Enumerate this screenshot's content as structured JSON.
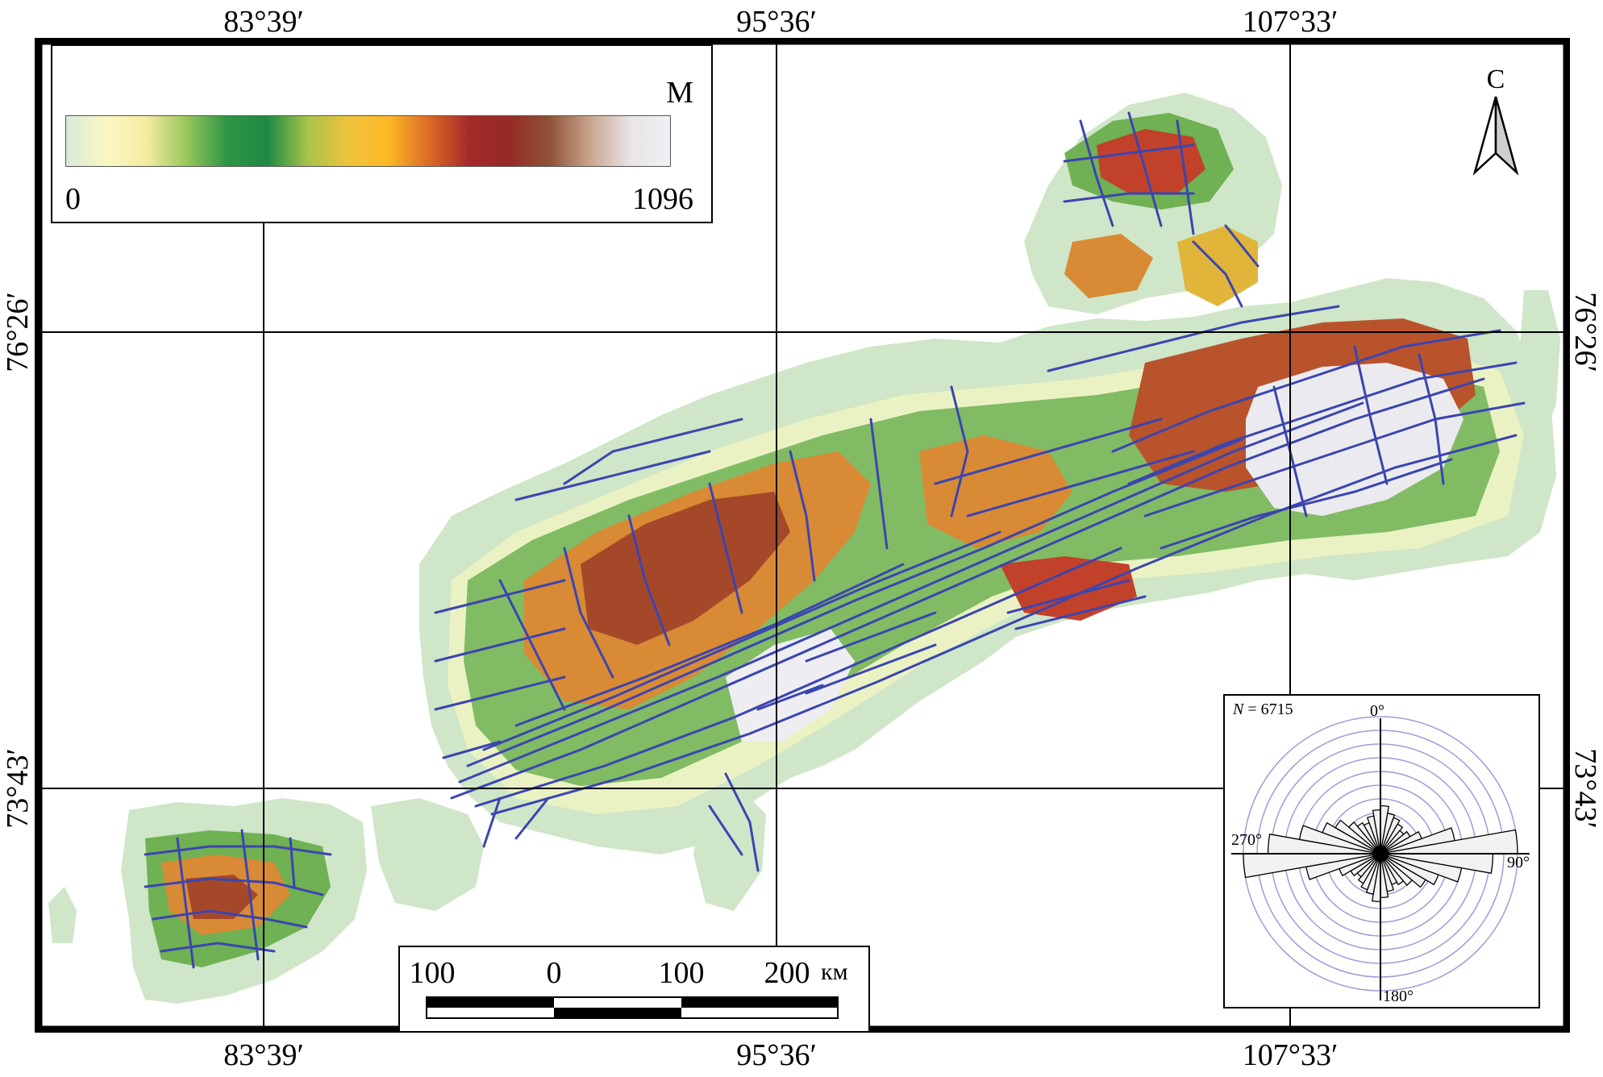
{
  "map": {
    "top_longitudes": [
      "83°39′",
      "95°36′",
      "107°33′"
    ],
    "bottom_longitudes": [
      "83°39′",
      "95°36′",
      "107°33′"
    ],
    "left_latitudes": [
      "76°26′",
      "73°43′"
    ],
    "right_latitudes": [
      "76°26′",
      "73°43′"
    ]
  },
  "legend": {
    "unit": "M",
    "min_label": "0",
    "max_label": "1096",
    "elevation_min": 0,
    "elevation_max": 1096,
    "colors": [
      "#d7ead8",
      "#fbf7c4",
      "#f4eba0",
      "#97c65b",
      "#2d9545",
      "#1f8a44",
      "#a7c349",
      "#eec33e",
      "#fdb926",
      "#dc6b26",
      "#a52a2a",
      "#952a25",
      "#8e5236",
      "#c9a48d",
      "#e8e3e6",
      "#f1f1f5"
    ]
  },
  "north_arrow": {
    "label": "С"
  },
  "scale_bar": {
    "labels": [
      "100",
      "0",
      "100",
      "200"
    ],
    "unit": "км"
  },
  "rose_diagram": {
    "n_label": "N",
    "n_equals": " = 6715",
    "angle_labels": {
      "north": "0°",
      "east": "90°",
      "south": "180°",
      "west": "270°"
    },
    "petal_colors": {
      "fill": "#f2f2f2",
      "stroke": "#000000",
      "rings": "#9d9dd6"
    }
  },
  "colors": {
    "lineaments": "#3b45b0",
    "frame": "#000000",
    "grid": "#000000"
  }
}
